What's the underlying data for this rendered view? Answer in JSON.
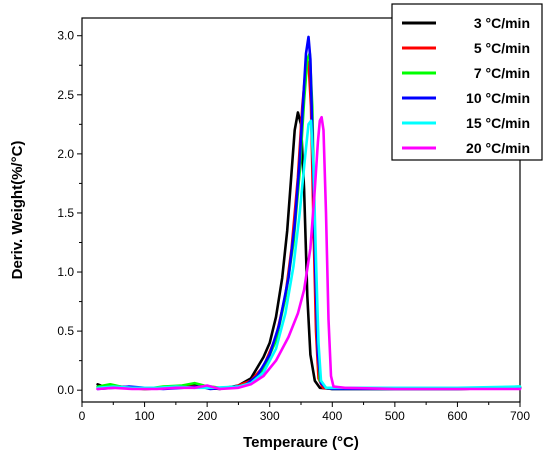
{
  "chart_data": {
    "type": "line",
    "xlabel": "Temperaure (°C)",
    "ylabel": "Deriv. Weight(%/°C)",
    "xlim": [
      0,
      700
    ],
    "ylim": [
      -0.1,
      3.15
    ],
    "x_ticks": [
      "0",
      "100",
      "200",
      "300",
      "400",
      "500",
      "600",
      "700"
    ],
    "y_ticks": [
      "0.0",
      "0.5",
      "1.0",
      "1.5",
      "2.0",
      "2.5",
      "3.0"
    ],
    "grid": false,
    "legend_position": "top-right",
    "series": [
      {
        "name": "3 °C/min",
        "color": "#000000",
        "points": [
          [
            25,
            0.05
          ],
          [
            40,
            0.02
          ],
          [
            60,
            0.03
          ],
          [
            80,
            0.02
          ],
          [
            100,
            0.01
          ],
          [
            150,
            0.02
          ],
          [
            180,
            0.04
          ],
          [
            200,
            0.02
          ],
          [
            220,
            0.01
          ],
          [
            250,
            0.04
          ],
          [
            270,
            0.1
          ],
          [
            290,
            0.28
          ],
          [
            300,
            0.4
          ],
          [
            310,
            0.62
          ],
          [
            320,
            0.95
          ],
          [
            328,
            1.35
          ],
          [
            335,
            1.85
          ],
          [
            340,
            2.2
          ],
          [
            345,
            2.35
          ],
          [
            350,
            2.25
          ],
          [
            355,
            1.7
          ],
          [
            360,
            0.8
          ],
          [
            365,
            0.3
          ],
          [
            372,
            0.08
          ],
          [
            380,
            0.02
          ],
          [
            400,
            0.01
          ],
          [
            500,
            0.01
          ],
          [
            600,
            0.01
          ],
          [
            700,
            0.02
          ]
        ]
      },
      {
        "name": "5 °C/min",
        "color": "#ff0000",
        "points": [
          [
            25,
            0.02
          ],
          [
            40,
            0.04
          ],
          [
            60,
            0.02
          ],
          [
            100,
            0.01
          ],
          [
            150,
            0.02
          ],
          [
            180,
            0.03
          ],
          [
            200,
            0.02
          ],
          [
            240,
            0.02
          ],
          [
            270,
            0.08
          ],
          [
            290,
            0.2
          ],
          [
            310,
            0.45
          ],
          [
            325,
            0.8
          ],
          [
            335,
            1.2
          ],
          [
            345,
            1.8
          ],
          [
            352,
            2.4
          ],
          [
            358,
            2.75
          ],
          [
            362,
            2.78
          ],
          [
            366,
            2.4
          ],
          [
            370,
            1.4
          ],
          [
            374,
            0.5
          ],
          [
            378,
            0.1
          ],
          [
            385,
            0.02
          ],
          [
            400,
            0.01
          ],
          [
            600,
            0.01
          ],
          [
            700,
            0.02
          ]
        ]
      },
      {
        "name": "7 °C/min",
        "color": "#00ff00",
        "points": [
          [
            25,
            0.03
          ],
          [
            45,
            0.05
          ],
          [
            70,
            0.02
          ],
          [
            100,
            0.01
          ],
          [
            130,
            0.03
          ],
          [
            160,
            0.04
          ],
          [
            180,
            0.06
          ],
          [
            195,
            0.04
          ],
          [
            220,
            0.02
          ],
          [
            250,
            0.03
          ],
          [
            270,
            0.06
          ],
          [
            290,
            0.18
          ],
          [
            310,
            0.42
          ],
          [
            325,
            0.78
          ],
          [
            338,
            1.25
          ],
          [
            348,
            1.85
          ],
          [
            355,
            2.45
          ],
          [
            360,
            2.8
          ],
          [
            364,
            2.85
          ],
          [
            368,
            2.4
          ],
          [
            372,
            1.3
          ],
          [
            376,
            0.45
          ],
          [
            380,
            0.08
          ],
          [
            390,
            0.02
          ],
          [
            400,
            0.01
          ],
          [
            600,
            0.01
          ],
          [
            700,
            0.03
          ]
        ]
      },
      {
        "name": "10 °C/min",
        "color": "#0000ff",
        "points": [
          [
            25,
            0.01
          ],
          [
            50,
            0.02
          ],
          [
            75,
            0.03
          ],
          [
            100,
            0.02
          ],
          [
            130,
            0.01
          ],
          [
            160,
            0.02
          ],
          [
            190,
            0.03
          ],
          [
            205,
            0.01
          ],
          [
            230,
            0.02
          ],
          [
            260,
            0.04
          ],
          [
            280,
            0.12
          ],
          [
            300,
            0.3
          ],
          [
            315,
            0.55
          ],
          [
            330,
            0.95
          ],
          [
            340,
            1.4
          ],
          [
            348,
            1.95
          ],
          [
            354,
            2.5
          ],
          [
            358,
            2.85
          ],
          [
            362,
            2.99
          ],
          [
            365,
            2.8
          ],
          [
            369,
            2.0
          ],
          [
            373,
            1.0
          ],
          [
            377,
            0.3
          ],
          [
            382,
            0.06
          ],
          [
            390,
            0.02
          ],
          [
            400,
            0.01
          ],
          [
            600,
            0.01
          ],
          [
            700,
            0.02
          ]
        ]
      },
      {
        "name": "15 °C/min",
        "color": "#00ffff",
        "points": [
          [
            25,
            0.02
          ],
          [
            50,
            0.03
          ],
          [
            80,
            0.02
          ],
          [
            120,
            0.02
          ],
          [
            150,
            0.03
          ],
          [
            180,
            0.02
          ],
          [
            210,
            0.02
          ],
          [
            250,
            0.03
          ],
          [
            270,
            0.06
          ],
          [
            290,
            0.15
          ],
          [
            310,
            0.35
          ],
          [
            325,
            0.65
          ],
          [
            338,
            1.05
          ],
          [
            348,
            1.5
          ],
          [
            356,
            1.95
          ],
          [
            362,
            2.25
          ],
          [
            366,
            2.28
          ],
          [
            370,
            1.9
          ],
          [
            374,
            1.1
          ],
          [
            378,
            0.4
          ],
          [
            382,
            0.08
          ],
          [
            390,
            0.02
          ],
          [
            400,
            0.02
          ],
          [
            600,
            0.02
          ],
          [
            700,
            0.03
          ]
        ]
      },
      {
        "name": "20 °C/min",
        "color": "#ff00ff",
        "points": [
          [
            25,
            0.01
          ],
          [
            50,
            0.02
          ],
          [
            80,
            0.01
          ],
          [
            120,
            0.01
          ],
          [
            150,
            0.02
          ],
          [
            180,
            0.02
          ],
          [
            200,
            0.04
          ],
          [
            220,
            0.01
          ],
          [
            250,
            0.02
          ],
          [
            270,
            0.05
          ],
          [
            290,
            0.12
          ],
          [
            310,
            0.25
          ],
          [
            330,
            0.45
          ],
          [
            345,
            0.65
          ],
          [
            355,
            0.85
          ],
          [
            365,
            1.2
          ],
          [
            372,
            1.7
          ],
          [
            377,
            2.1
          ],
          [
            380,
            2.28
          ],
          [
            383,
            2.31
          ],
          [
            386,
            2.2
          ],
          [
            390,
            1.5
          ],
          [
            394,
            0.6
          ],
          [
            398,
            0.12
          ],
          [
            402,
            0.03
          ],
          [
            420,
            0.02
          ],
          [
            500,
            0.01
          ],
          [
            600,
            0.01
          ],
          [
            700,
            0.01
          ]
        ]
      }
    ]
  }
}
